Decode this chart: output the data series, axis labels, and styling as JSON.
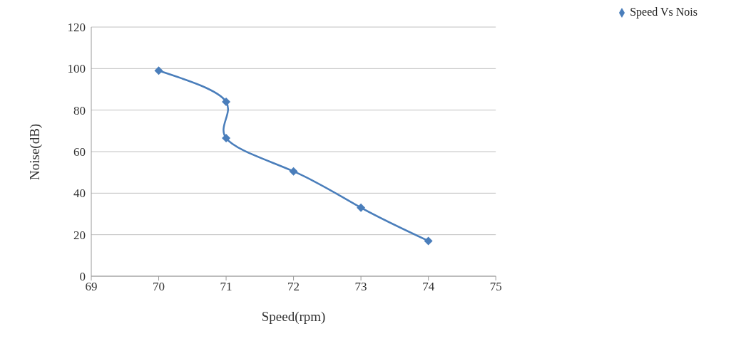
{
  "chart_data": {
    "type": "line",
    "xlabel": "Speed(rpm)",
    "ylabel": "Noise(dB)",
    "x": [
      70,
      71,
      71,
      72,
      73,
      74
    ],
    "series": [
      {
        "name": "Speed Vs Nois",
        "color": "#4a7ebb",
        "values": [
          99,
          84,
          66.5,
          50.5,
          33,
          17
        ]
      }
    ],
    "xlim": [
      69,
      75
    ],
    "xticks": [
      69,
      70,
      71,
      72,
      73,
      74,
      75
    ],
    "ylim": [
      0,
      120
    ],
    "yticks": [
      0,
      20,
      40,
      60,
      80,
      100,
      120
    ],
    "grid": "y",
    "legend": "top right",
    "marker": "diamond",
    "line_style": "solid"
  }
}
